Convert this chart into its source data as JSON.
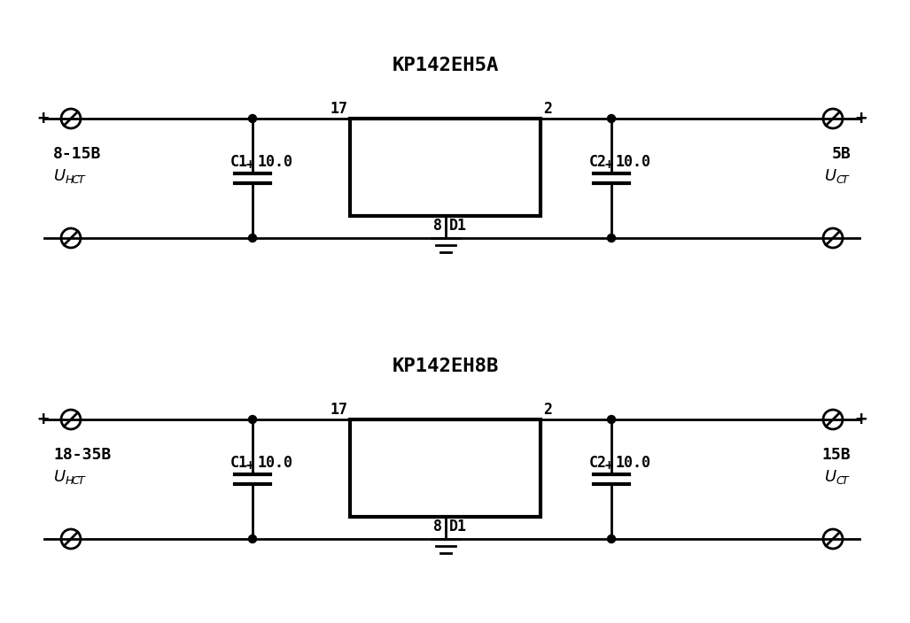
{
  "title1": "KP142EH5A",
  "title2": "KP142EH8B",
  "bg_color": "#ffffff",
  "line_color": "#000000",
  "circuit1": {
    "input_voltage": "8-15B",
    "output_voltage": "5B",
    "cap_value": "10.0"
  },
  "circuit2": {
    "input_voltage": "18-35B",
    "output_voltage": "15B",
    "cap_value": "10.0"
  },
  "layout": {
    "fig_w": 10.27,
    "fig_h": 7.04,
    "dpi": 100
  }
}
